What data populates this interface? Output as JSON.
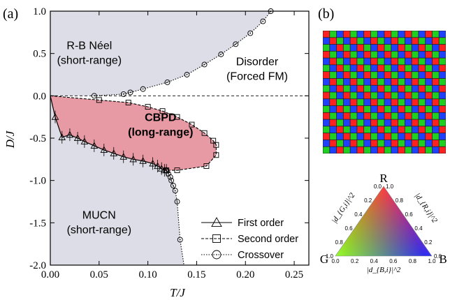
{
  "panel_a": {
    "label": "(a)",
    "chart_data": {
      "type": "phase-diagram",
      "xlabel": "T/J",
      "ylabel": "D/J",
      "xlim": [
        0.0,
        0.265
      ],
      "ylim": [
        -2.0,
        1.0
      ],
      "xticks": [
        "0.00",
        "0.05",
        "0.10",
        "0.15",
        "0.20",
        "0.25"
      ],
      "xtick_values": [
        0.0,
        0.05,
        0.1,
        0.15,
        0.2,
        0.25
      ],
      "yticks": [
        "1.0",
        "0.5",
        "0.0",
        "-0.5",
        "-1.0",
        "-1.5",
        "-2.0"
      ],
      "ytick_values": [
        1.0,
        0.5,
        0.0,
        -0.5,
        -1.0,
        -1.5,
        -2.0
      ],
      "regions": [
        {
          "name": "R-B Néel",
          "sub": "(short-range)",
          "color": "#dcdde6",
          "x": 0.04,
          "y": 0.55
        },
        {
          "name": "Disorder",
          "sub": "(Forced FM)",
          "color": "#ffffff",
          "x": 0.212,
          "y": 0.36
        },
        {
          "name": "CBPD",
          "sub": "(long-range)",
          "color": "#e79aa3",
          "x": 0.113,
          "y": -0.3
        },
        {
          "name": "MUCN",
          "sub": "(short-range)",
          "color": "#dcdde6",
          "x": 0.05,
          "y": -1.45
        }
      ],
      "series": [
        {
          "name": "First order",
          "style": "solid",
          "marker": "triangle",
          "x": [
            0.0,
            0.005,
            0.012,
            0.02,
            0.028,
            0.035,
            0.045,
            0.055,
            0.065,
            0.075,
            0.085,
            0.095,
            0.105,
            0.11,
            0.114,
            0.117,
            0.119
          ],
          "y": [
            0.0,
            -0.25,
            -0.49,
            -0.46,
            -0.5,
            -0.54,
            -0.59,
            -0.64,
            -0.68,
            -0.72,
            -0.75,
            -0.77,
            -0.8,
            -0.83,
            -0.86,
            -0.88,
            -0.88
          ]
        },
        {
          "name": "Second order",
          "style": "dashed",
          "marker": "square",
          "x": [
            0.0,
            0.05,
            0.08,
            0.1,
            0.115,
            0.13,
            0.145,
            0.158,
            0.167,
            0.17,
            0.17,
            0.16,
            0.13,
            0.119
          ],
          "y": [
            0.0,
            -0.05,
            -0.08,
            -0.13,
            -0.18,
            -0.25,
            -0.34,
            -0.44,
            -0.53,
            -0.58,
            -0.7,
            -0.83,
            -0.88,
            -0.88
          ]
        },
        {
          "name": "Crossover",
          "style": "dotted",
          "marker": "circle",
          "x": [
            0.045,
            0.075,
            0.082,
            0.095,
            0.12,
            0.14,
            0.158,
            0.175,
            0.19,
            0.205,
            0.218,
            0.226
          ],
          "y": [
            0.0,
            0.02,
            0.04,
            0.08,
            0.16,
            0.25,
            0.37,
            0.49,
            0.61,
            0.74,
            0.88,
            1.0
          ]
        },
        {
          "name": "Crossover",
          "style": "dotted",
          "marker": "circle",
          "legend": false,
          "x": [
            0.119,
            0.121,
            0.123,
            0.124,
            0.126,
            0.128,
            0.13,
            0.133
          ],
          "y": [
            -0.88,
            -0.92,
            -0.96,
            -1.0,
            -1.06,
            -1.12,
            -1.25,
            -1.7
          ]
        },
        {
          "name": "Crossover",
          "style": "dotted",
          "marker": "none",
          "legend": false,
          "x": [
            0.133,
            0.135,
            0.137
          ],
          "y": [
            -1.7,
            -1.85,
            -2.0
          ]
        }
      ],
      "legend": {
        "position": "bottom-right",
        "entries": [
          {
            "label": "First order",
            "style": "solid",
            "marker": "triangle"
          },
          {
            "label": "Second order",
            "style": "dashed",
            "marker": "square"
          },
          {
            "label": "Crossover",
            "style": "dotted",
            "marker": "circle"
          }
        ]
      },
      "reference_line": {
        "y": 0.0,
        "style": "dashed"
      }
    }
  },
  "panel_b": {
    "label": "(b)",
    "checkerboard": {
      "rows": 18,
      "cols": 18,
      "colors": [
        "#ff2020",
        "#20d020",
        "#2040ff"
      ]
    },
    "triangle": {
      "vertex_top": "R",
      "vertex_left": "G",
      "vertex_right": "B",
      "left_axis_label": "|d_{G,i}|^2",
      "right_axis_label": "|d_{R,i}|^2",
      "bottom_axis_label": "|d_{B,i}|^2",
      "ticks": [
        "0.0",
        "0.2",
        "0.4",
        "0.6",
        "0.8",
        "1.0"
      ],
      "colors": {
        "R": "#ff0000",
        "G": "#7fff00",
        "B": "#0000ff"
      }
    }
  }
}
